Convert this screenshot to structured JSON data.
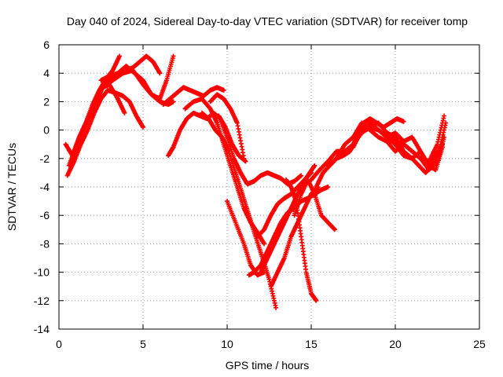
{
  "chart_data": {
    "type": "scatter",
    "title": "Day 040 of 2024, Sidereal Day-to-day VTEC variation (SDTVAR) for receiver tomp",
    "xlabel": "GPS time / hours",
    "ylabel": "SDTVAR / TECUs",
    "xlim": [
      0,
      25
    ],
    "ylim": [
      -14,
      6
    ],
    "xticks": [
      0,
      5,
      10,
      15,
      20,
      25
    ],
    "yticks": [
      -14,
      -12,
      -10,
      -8,
      -6,
      -4,
      -2,
      0,
      2,
      4,
      6
    ],
    "grid": true,
    "legend": "none",
    "marker_color": "#ff0000",
    "series": [
      {
        "x": [
          0.4,
          0.8,
          1.2,
          1.6,
          2.0,
          2.4,
          2.8,
          3.2,
          3.6
        ],
        "y": [
          -1.0,
          -1.8,
          -0.5,
          0.5,
          1.8,
          2.8,
          3.6,
          4.2,
          5.2
        ]
      },
      {
        "x": [
          0.5,
          0.9,
          1.3,
          1.7,
          2.1,
          2.5,
          2.9,
          3.4,
          3.8,
          4.2,
          4.6,
          5.0
        ],
        "y": [
          -3.2,
          -2.2,
          -1.0,
          0.0,
          1.2,
          2.2,
          2.8,
          2.6,
          2.4,
          2.0,
          1.0,
          0.2
        ]
      },
      {
        "x": [
          0.6,
          1.0,
          1.4,
          1.8,
          2.2,
          2.6,
          3.0,
          3.5,
          3.9
        ],
        "y": [
          -2.5,
          -1.2,
          0.0,
          1.0,
          2.0,
          3.0,
          3.2,
          2.2,
          1.2
        ]
      },
      {
        "x": [
          0.8,
          1.2,
          1.6,
          2.0,
          2.4,
          2.8,
          3.2,
          3.6,
          4.0,
          4.4,
          4.8,
          5.2,
          5.6,
          6.0
        ],
        "y": [
          -2.0,
          -0.8,
          0.5,
          1.5,
          2.5,
          3.5,
          3.8,
          4.0,
          4.2,
          4.4,
          4.8,
          5.2,
          4.8,
          4.0
        ]
      },
      {
        "x": [
          2.5,
          3.0,
          3.5,
          4.0,
          4.5,
          5.0,
          5.5,
          6.0,
          6.5,
          6.8
        ],
        "y": [
          3.5,
          3.8,
          4.0,
          4.5,
          4.0,
          3.5,
          2.5,
          2.0,
          1.8,
          2.0
        ]
      },
      {
        "x": [
          2.6,
          3.2,
          3.8,
          4.4,
          5.0,
          5.5,
          6.0,
          6.4,
          6.8
        ],
        "y": [
          3.0,
          3.5,
          4.0,
          4.2,
          3.2,
          2.5,
          2.2,
          3.5,
          5.2
        ]
      },
      {
        "x": [
          6.2,
          6.6,
          7.0,
          7.4,
          7.8,
          8.2,
          8.6,
          9.0,
          9.4,
          9.8
        ],
        "y": [
          1.8,
          2.2,
          2.6,
          3.0,
          2.8,
          2.6,
          2.4,
          2.8,
          3.0,
          2.8
        ]
      },
      {
        "x": [
          6.5,
          6.8,
          7.2,
          7.6,
          8.0,
          8.4,
          8.8,
          9.2,
          9.6,
          10.0,
          10.4,
          10.8,
          11.2,
          11.6,
          12.0,
          12.4,
          12.8,
          13.2,
          13.6,
          14.0,
          14.4
        ],
        "y": [
          -1.8,
          -1.2,
          0.0,
          0.8,
          1.2,
          1.0,
          0.8,
          1.2,
          0.8,
          -0.5,
          -2.0,
          -3.0,
          -3.8,
          -3.6,
          -3.2,
          -3.0,
          -3.2,
          -3.4,
          -3.8,
          -3.6,
          -3.2
        ]
      },
      {
        "x": [
          7.5,
          8.0,
          8.5,
          9.0,
          9.4,
          9.8,
          10.2,
          10.6,
          11.0,
          11.4,
          11.8,
          12.2
        ],
        "y": [
          1.5,
          2.0,
          2.2,
          1.5,
          0.5,
          -1.0,
          -2.5,
          -4.0,
          -5.5,
          -6.5,
          -7.2,
          -8.0
        ]
      },
      {
        "x": [
          8.5,
          8.9,
          9.3,
          9.7,
          10.1,
          10.5,
          10.9,
          11.3,
          11.7,
          12.1,
          12.5,
          12.9
        ],
        "y": [
          1.2,
          0.8,
          0.0,
          -0.5,
          -1.5,
          -3.0,
          -4.5,
          -6.0,
          -7.5,
          -9.0,
          -10.5,
          -12.5
        ]
      },
      {
        "x": [
          9.0,
          9.4,
          9.8,
          10.2,
          10.6,
          11.0
        ],
        "y": [
          2.0,
          2.5,
          2.2,
          1.5,
          0.5,
          -2.0
        ]
      },
      {
        "x": [
          9.5,
          9.9,
          10.3,
          10.7,
          11.1
        ],
        "y": [
          1.0,
          0.2,
          -1.0,
          -1.8,
          -2.2
        ]
      },
      {
        "x": [
          10.0,
          10.5,
          11.0,
          11.4,
          11.8,
          12.2
        ],
        "y": [
          -5.0,
          -6.5,
          -8.0,
          -9.5,
          -10.2,
          -10.0
        ]
      },
      {
        "x": [
          11.3,
          11.6,
          12.0,
          12.4,
          12.8,
          13.2,
          13.6,
          14.0,
          14.4,
          14.8,
          15.2,
          15.6,
          16.0
        ],
        "y": [
          -10.2,
          -10.0,
          -9.5,
          -8.5,
          -7.5,
          -6.5,
          -5.8,
          -5.5,
          -5.0,
          -4.8,
          -4.5,
          -4.2,
          -4.0
        ]
      },
      {
        "x": [
          11.8,
          12.2,
          12.6,
          13.0,
          13.4,
          13.8,
          14.2,
          14.6,
          15.0
        ],
        "y": [
          -7.5,
          -7.0,
          -6.0,
          -5.2,
          -4.8,
          -4.5,
          -4.0,
          -3.5,
          -3.0
        ]
      },
      {
        "x": [
          12.0,
          12.4,
          12.8,
          13.2,
          13.6,
          14.0,
          14.4,
          14.8,
          15.2
        ],
        "y": [
          -10.0,
          -9.0,
          -8.0,
          -7.0,
          -6.0,
          -5.0,
          -4.0,
          -3.2,
          -2.5
        ]
      },
      {
        "x": [
          12.6,
          13.0,
          13.4,
          13.8,
          14.2,
          14.6,
          15.0,
          15.4
        ],
        "y": [
          -11.0,
          -10.0,
          -9.0,
          -7.5,
          -6.5,
          -5.5,
          -4.5,
          -4.0
        ]
      },
      {
        "x": [
          13.5,
          13.8,
          14.1,
          14.4,
          14.7,
          15.0,
          15.3
        ],
        "y": [
          -3.5,
          -4.0,
          -5.0,
          -7.5,
          -10.0,
          -11.5,
          -12.0
        ]
      },
      {
        "x": [
          14.0,
          14.4,
          14.8,
          15.2,
          15.6,
          16.0,
          16.4
        ],
        "y": [
          -6.0,
          -4.5,
          -3.5,
          -4.5,
          -6.0,
          -6.5,
          -7.0
        ]
      },
      {
        "x": [
          15.3,
          15.7,
          16.1,
          16.5,
          16.9,
          17.3,
          17.7,
          18.1,
          18.5,
          18.9,
          19.3,
          19.7,
          20.1,
          20.5
        ],
        "y": [
          -4.0,
          -3.0,
          -2.5,
          -2.0,
          -1.8,
          -1.5,
          -0.5,
          0.5,
          0.8,
          0.5,
          0.2,
          0.5,
          0.8,
          0.6
        ]
      },
      {
        "x": [
          15.0,
          15.5,
          16.0,
          16.5,
          17.0,
          17.5,
          18.0,
          18.5,
          19.0,
          19.5,
          20.0,
          20.5,
          21.0,
          21.5,
          22.0,
          22.5,
          22.9
        ],
        "y": [
          -3.5,
          -2.8,
          -2.2,
          -1.5,
          -1.5,
          -1.2,
          0.0,
          0.5,
          0.0,
          -0.5,
          -0.8,
          -1.0,
          -1.5,
          -2.0,
          -2.8,
          -2.2,
          -0.5
        ]
      },
      {
        "x": [
          16.0,
          16.5,
          17.0,
          17.5,
          18.0,
          18.5,
          19.0,
          19.5,
          20.0,
          20.5,
          21.0,
          21.5,
          22.0,
          22.4,
          22.8
        ],
        "y": [
          -2.5,
          -2.0,
          -1.0,
          -0.5,
          0.5,
          0.0,
          -0.5,
          -0.8,
          -1.5,
          -1.0,
          -1.5,
          -2.0,
          -2.5,
          -1.8,
          -1.0
        ]
      },
      {
        "x": [
          17.0,
          17.5,
          18.0,
          18.5,
          19.0,
          19.5,
          20.0,
          20.5,
          21.0,
          21.5,
          22.0,
          22.5
        ],
        "y": [
          -1.5,
          -1.0,
          -0.2,
          0.2,
          0.0,
          -0.5,
          -0.2,
          -0.8,
          -0.5,
          -1.5,
          -2.5,
          -2.0
        ]
      },
      {
        "x": [
          18.0,
          18.5,
          19.0,
          19.5,
          20.0,
          20.5,
          21.0,
          21.4,
          21.8,
          22.2,
          22.6,
          23.0
        ],
        "y": [
          0.0,
          0.4,
          0.5,
          -0.2,
          -0.5,
          -1.5,
          -2.0,
          -2.5,
          -3.0,
          -2.5,
          -1.5,
          0.5
        ]
      },
      {
        "x": [
          19.5,
          20.0,
          20.5,
          21.0,
          21.5,
          22.0,
          22.4,
          22.8
        ],
        "y": [
          -0.5,
          -1.0,
          -1.8,
          -2.0,
          -1.5,
          -2.5,
          -2.8,
          -1.2
        ]
      },
      {
        "x": [
          21.5,
          22.0,
          22.5,
          22.9
        ],
        "y": [
          -2.0,
          -2.2,
          -1.0,
          1.0
        ]
      }
    ]
  }
}
